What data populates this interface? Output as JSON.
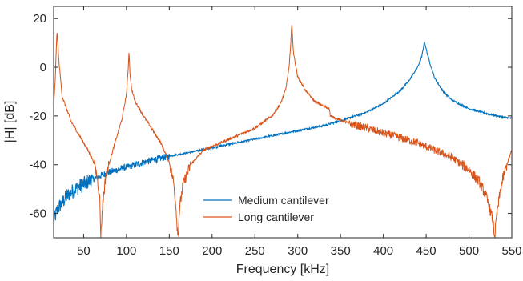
{
  "chart_data": {
    "type": "line",
    "title": "",
    "xlabel": "Frequency [kHz]",
    "ylabel": "|H| [dB]",
    "xlim": [
      15,
      550
    ],
    "ylim": [
      -70,
      25
    ],
    "xticks": [
      50,
      100,
      150,
      200,
      250,
      300,
      350,
      400,
      450,
      500,
      550
    ],
    "xtick_labels": [
      "50",
      "100",
      "150",
      "200",
      "250",
      "300",
      "350",
      "400",
      "450",
      "500",
      "550"
    ],
    "yticks": [
      20,
      0,
      -20,
      -40,
      -60
    ],
    "ytick_labels": [
      "20",
      "0",
      "-20",
      "-40",
      "-60"
    ],
    "grid": false,
    "legend_position": "lower-center",
    "series": [
      {
        "name": "Medium cantilever",
        "color": "#0072BD",
        "x": [
          15,
          20,
          30,
          40,
          50,
          60,
          70,
          80,
          100,
          120,
          150,
          180,
          200,
          250,
          300,
          330,
          350,
          380,
          400,
          420,
          430,
          440,
          445,
          448,
          451,
          455,
          460,
          470,
          480,
          500,
          520,
          540,
          550
        ],
        "y": [
          -63,
          -58,
          -53,
          -50,
          -48,
          -46,
          -44.5,
          -43,
          -41,
          -39,
          -36.5,
          -34.5,
          -33,
          -29.5,
          -26,
          -24,
          -22,
          -18.5,
          -15,
          -9.5,
          -5.5,
          0,
          4.5,
          10.5,
          6,
          1,
          -4.5,
          -10,
          -13.5,
          -17,
          -19,
          -20.5,
          -21
        ]
      },
      {
        "name": "Long cantilever",
        "color": "#D95319",
        "x": [
          15,
          17,
          18,
          19,
          21,
          25,
          35,
          45,
          55,
          62,
          66,
          69,
          70,
          72,
          76,
          85,
          95,
          100,
          102,
          103,
          104,
          106,
          110,
          120,
          140,
          150,
          155,
          158,
          160,
          162,
          166,
          175,
          190,
          210,
          230,
          250,
          270,
          280,
          286,
          290,
          292,
          293,
          295,
          300,
          310,
          320,
          330,
          337,
          338,
          345,
          360,
          380,
          400,
          420,
          440,
          460,
          480,
          500,
          512,
          520,
          525,
          528,
          530,
          532,
          536,
          540,
          545,
          550
        ],
        "y": [
          -17,
          -4,
          7,
          15,
          3,
          -12,
          -22,
          -28,
          -34,
          -39,
          -45,
          -55,
          -70,
          -57,
          -44,
          -33,
          -21,
          -11,
          -1,
          7,
          -2,
          -9,
          -14,
          -20,
          -31,
          -39,
          -47,
          -58,
          -70,
          -58,
          -48,
          -40,
          -34,
          -31,
          -28,
          -25,
          -20,
          -15,
          -9,
          0,
          11,
          18,
          6,
          -4,
          -10,
          -14,
          -16,
          -17,
          -20,
          -21,
          -23,
          -25,
          -27,
          -29,
          -31,
          -34,
          -37,
          -42,
          -47,
          -53,
          -59,
          -63,
          -70,
          -62,
          -52,
          -45,
          -39,
          -34
        ]
      }
    ]
  }
}
